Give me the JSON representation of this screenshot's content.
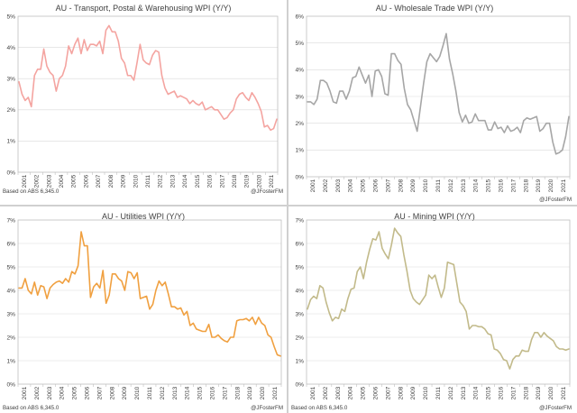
{
  "footnote": "Based on ABS 6,345.0",
  "credit": "@JFosterFM",
  "x_tick_labels": [
    "2001",
    "2002",
    "2003",
    "2004",
    "2005",
    "2006",
    "2007",
    "2008",
    "2009",
    "2010",
    "2011",
    "2012",
    "2013",
    "2014",
    "2015",
    "2016",
    "2017",
    "2018",
    "2019",
    "2020",
    "2021"
  ],
  "chart_data": [
    {
      "type": "line",
      "title": "AU - Transport, Postal & Warehousing WPI (Y/Y)",
      "color": "#f4a4a0",
      "ylim": [
        0,
        5
      ],
      "yticks": [
        "0%",
        "1%",
        "2%",
        "3%",
        "4%",
        "5%"
      ],
      "grid": "horizontal",
      "x_start": 2001,
      "series": [
        {
          "values": [
            2.9,
            2.5,
            2.3,
            2.4,
            2.1,
            3.1,
            3.3,
            3.3,
            3.95,
            3.4,
            3.2,
            3.1,
            2.6,
            3.0,
            3.1,
            3.4,
            4.05,
            3.8,
            4.1,
            4.3,
            3.8,
            4.25,
            3.9,
            4.1,
            4.1,
            4.05,
            4.2,
            3.8,
            4.55,
            4.7,
            4.5,
            4.5,
            4.2,
            3.65,
            3.5,
            3.1,
            3.1,
            2.95,
            3.5,
            4.1,
            3.6,
            3.5,
            3.45,
            3.75,
            3.9,
            3.85,
            3.1,
            2.7,
            2.5,
            2.55,
            2.6,
            2.4,
            2.45,
            2.4,
            2.35,
            2.2,
            2.3,
            2.2,
            2.15,
            2.25,
            2.0,
            2.05,
            2.1,
            2.0,
            2.0,
            1.85,
            1.7,
            1.75,
            1.9,
            2.0,
            2.35,
            2.5,
            2.55,
            2.4,
            2.3,
            2.55,
            2.4,
            2.2,
            1.95,
            1.45,
            1.5,
            1.35,
            1.4,
            1.7
          ]
        }
      ]
    },
    {
      "type": "line",
      "title": "AU - Wholesale Trade WPI (Y/Y)",
      "color": "#a6a6a6",
      "ylim": [
        0,
        6
      ],
      "yticks": [
        "0%",
        "1%",
        "2%",
        "3%",
        "4%",
        "5%",
        "6%"
      ],
      "grid": "horizontal",
      "x_start": 2001,
      "series": [
        {
          "values": [
            2.8,
            2.8,
            2.7,
            2.9,
            3.6,
            3.6,
            3.5,
            3.2,
            2.8,
            2.75,
            3.2,
            3.2,
            2.9,
            3.2,
            3.7,
            3.75,
            4.1,
            3.8,
            3.5,
            3.8,
            3.0,
            3.95,
            4.0,
            3.75,
            3.1,
            3.05,
            4.6,
            4.6,
            4.35,
            4.2,
            3.3,
            2.7,
            2.5,
            2.1,
            1.7,
            2.6,
            3.5,
            4.3,
            4.6,
            4.45,
            4.3,
            4.5,
            4.9,
            5.35,
            4.4,
            3.85,
            3.2,
            2.4,
            2.05,
            2.3,
            2.0,
            2.05,
            2.35,
            2.1,
            2.1,
            2.1,
            1.75,
            1.75,
            2.05,
            1.8,
            1.85,
            1.65,
            1.9,
            1.7,
            1.75,
            1.85,
            1.65,
            2.1,
            2.2,
            2.15,
            2.2,
            2.25,
            1.7,
            1.8,
            2.0,
            2.0,
            1.3,
            0.85,
            0.9,
            1.0,
            1.5,
            2.25
          ]
        }
      ]
    },
    {
      "type": "line",
      "title": "AU - Utilities WPI (Y/Y)",
      "color": "#f0a040",
      "ylim": [
        0,
        7
      ],
      "yticks": [
        "0%",
        "1%",
        "2%",
        "3%",
        "4%",
        "5%",
        "6%",
        "7%"
      ],
      "grid": "horizontal",
      "x_start": 2001,
      "series": [
        {
          "values": [
            4.1,
            4.1,
            4.5,
            4.0,
            3.85,
            4.35,
            3.8,
            4.2,
            4.15,
            3.65,
            4.1,
            4.25,
            4.35,
            4.4,
            4.3,
            4.5,
            4.35,
            4.8,
            4.7,
            5.05,
            6.5,
            5.9,
            5.9,
            3.7,
            4.15,
            4.3,
            4.1,
            4.85,
            3.45,
            3.8,
            4.7,
            4.7,
            4.5,
            4.4,
            4.0,
            4.8,
            4.75,
            4.5,
            4.75,
            3.65,
            3.7,
            3.75,
            3.2,
            3.4,
            4.0,
            4.4,
            4.2,
            4.35,
            3.85,
            3.3,
            3.3,
            3.2,
            3.25,
            2.95,
            3.1,
            2.5,
            2.6,
            2.35,
            2.3,
            2.25,
            2.25,
            2.55,
            2.0,
            2.0,
            2.1,
            1.95,
            1.85,
            1.8,
            2.0,
            2.0,
            2.7,
            2.75,
            2.75,
            2.8,
            2.7,
            2.85,
            2.55,
            2.85,
            2.6,
            2.5,
            2.1,
            2.0,
            1.6,
            1.25,
            1.2
          ]
        }
      ]
    },
    {
      "type": "line",
      "title": "AU - Mining WPI (Y/Y)",
      "color": "#c2ba8a",
      "ylim": [
        0,
        7
      ],
      "yticks": [
        "0%",
        "1%",
        "2%",
        "3%",
        "4%",
        "5%",
        "6%",
        "7%"
      ],
      "grid": "horizontal",
      "x_start": 2001,
      "series": [
        {
          "values": [
            3.2,
            3.6,
            3.75,
            3.65,
            4.2,
            4.1,
            3.5,
            3.05,
            2.7,
            2.85,
            2.8,
            3.2,
            3.1,
            3.65,
            4.05,
            4.1,
            4.8,
            5.0,
            4.5,
            5.2,
            5.75,
            6.2,
            6.15,
            6.5,
            5.8,
            5.55,
            5.35,
            5.95,
            6.65,
            6.45,
            6.3,
            5.5,
            4.8,
            4.0,
            3.65,
            3.5,
            3.4,
            3.6,
            3.8,
            4.65,
            4.5,
            4.65,
            4.15,
            3.7,
            4.1,
            5.2,
            5.15,
            5.1,
            4.3,
            3.5,
            3.35,
            3.1,
            2.35,
            2.5,
            2.5,
            2.45,
            2.45,
            2.35,
            2.15,
            2.1,
            1.5,
            1.45,
            1.3,
            1.05,
            1.0,
            0.65,
            1.05,
            1.2,
            1.2,
            1.45,
            1.4,
            1.4,
            1.9,
            2.2,
            2.2,
            2.0,
            2.2,
            2.05,
            1.95,
            1.85,
            1.6,
            1.5,
            1.5,
            1.45,
            1.5
          ]
        }
      ]
    }
  ]
}
